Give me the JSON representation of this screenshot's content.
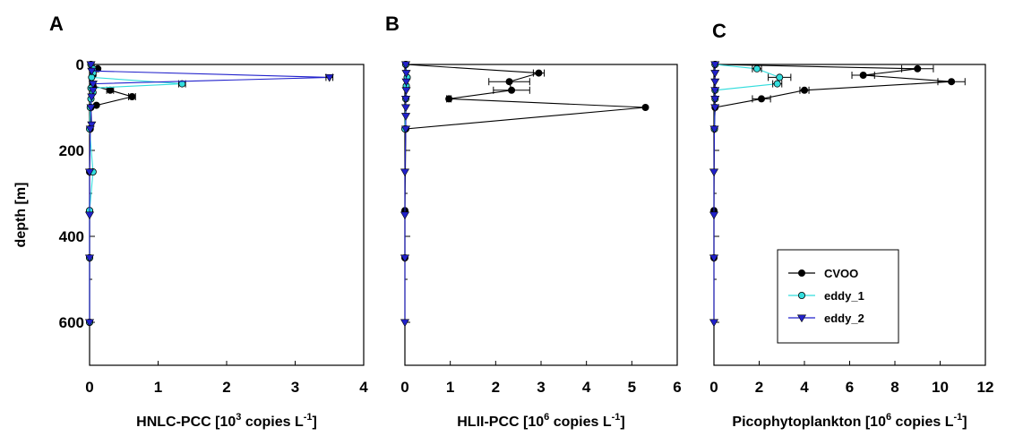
{
  "chart_data": [
    {
      "type": "line",
      "panel": "A",
      "xlabel": "HNLC-PCC [10",
      "xlabel_sup": "3",
      "xlabel_tail": " copies L",
      "xlabel_sup2": "-1",
      "xlabel_end": "]",
      "ylabel": "depth [m]",
      "xlim": [
        0,
        4
      ],
      "ylim": [
        0,
        700
      ],
      "xticks": [
        "0",
        "1",
        "2",
        "3",
        "4"
      ],
      "yticks": [
        "0",
        "200",
        "400",
        "600"
      ],
      "series": [
        {
          "name": "CVOO",
          "color": "#000000",
          "marker": "circle",
          "points": [
            {
              "y": 0,
              "x": 0.02
            },
            {
              "y": 10,
              "x": 0.12
            },
            {
              "y": 25,
              "x": 0.05
            },
            {
              "y": 50,
              "x": 0.05
            },
            {
              "y": 60,
              "x": 0.3,
              "err": 0.05
            },
            {
              "y": 75,
              "x": 0.62,
              "err": 0.05
            },
            {
              "y": 95,
              "x": 0.1
            },
            {
              "y": 100,
              "x": 0.02
            },
            {
              "y": 150,
              "x": 0.01
            },
            {
              "y": 250,
              "x": 0.0
            },
            {
              "y": 340,
              "x": 0.0
            },
            {
              "y": 450,
              "x": 0.0
            },
            {
              "y": 600,
              "x": 0.0
            }
          ]
        },
        {
          "name": "eddy_1",
          "color": "#33dddd",
          "marker": "circle",
          "points": [
            {
              "y": 0,
              "x": 0.02
            },
            {
              "y": 10,
              "x": 0.05
            },
            {
              "y": 20,
              "x": 0.05
            },
            {
              "y": 30,
              "x": 0.03
            },
            {
              "y": 45,
              "x": 1.35,
              "err": 0.05
            },
            {
              "y": 55,
              "x": 0.02
            },
            {
              "y": 65,
              "x": 0.05
            },
            {
              "y": 80,
              "x": 0.02
            },
            {
              "y": 100,
              "x": 0.01
            },
            {
              "y": 150,
              "x": 0.0
            },
            {
              "y": 250,
              "x": 0.05
            },
            {
              "y": 340,
              "x": 0.0
            },
            {
              "y": 450,
              "x": 0.0
            },
            {
              "y": 600,
              "x": 0.0
            }
          ]
        },
        {
          "name": "eddy_2",
          "color": "#2222cc",
          "marker": "triangle-down",
          "points": [
            {
              "y": 0,
              "x": 0.02
            },
            {
              "y": 15,
              "x": 0.03
            },
            {
              "y": 30,
              "x": 3.5,
              "err": 0.05
            },
            {
              "y": 45,
              "x": 0.05
            },
            {
              "y": 60,
              "x": 0.05
            },
            {
              "y": 75,
              "x": 0.03
            },
            {
              "y": 100,
              "x": 0.02
            },
            {
              "y": 140,
              "x": 0.03
            },
            {
              "y": 150,
              "x": 0.01
            },
            {
              "y": 250,
              "x": 0.0
            },
            {
              "y": 350,
              "x": 0.0
            },
            {
              "y": 450,
              "x": 0.0
            },
            {
              "y": 600,
              "x": 0.0
            }
          ]
        }
      ]
    },
    {
      "type": "line",
      "panel": "B",
      "xlabel": "HLII-PCC [10",
      "xlabel_sup": "6",
      "xlabel_tail": " copies L",
      "xlabel_sup2": "-1",
      "xlabel_end": "]",
      "xlim": [
        0,
        6
      ],
      "ylim": [
        0,
        700
      ],
      "xticks": [
        "0",
        "1",
        "2",
        "3",
        "4",
        "5",
        "6"
      ],
      "series": [
        {
          "name": "CVOO",
          "color": "#000000",
          "marker": "circle",
          "points": [
            {
              "y": 0,
              "x": 0.02
            },
            {
              "y": 20,
              "x": 2.95,
              "err": 0.12
            },
            {
              "y": 40,
              "x": 2.3,
              "err": 0.45
            },
            {
              "y": 60,
              "x": 2.35,
              "err": 0.4
            },
            {
              "y": 80,
              "x": 0.97,
              "err": 0.05
            },
            {
              "y": 100,
              "x": 5.3
            },
            {
              "y": 150,
              "x": 0.02
            },
            {
              "y": 340,
              "x": 0.0
            },
            {
              "y": 450,
              "x": 0.0
            }
          ]
        },
        {
          "name": "eddy_1",
          "color": "#33dddd",
          "marker": "circle",
          "points": [
            {
              "y": 0,
              "x": 0.02
            },
            {
              "y": 30,
              "x": 0.05
            },
            {
              "y": 50,
              "x": 0.03
            },
            {
              "y": 80,
              "x": 0.02
            },
            {
              "y": 150,
              "x": 0.0
            }
          ]
        },
        {
          "name": "eddy_2",
          "color": "#2222cc",
          "marker": "triangle-down",
          "points": [
            {
              "y": 0,
              "x": 0.02
            },
            {
              "y": 20,
              "x": 0.03
            },
            {
              "y": 40,
              "x": 0.03
            },
            {
              "y": 60,
              "x": 0.03
            },
            {
              "y": 80,
              "x": 0.02
            },
            {
              "y": 100,
              "x": 0.02
            },
            {
              "y": 120,
              "x": 0.02
            },
            {
              "y": 150,
              "x": 0.02
            },
            {
              "y": 250,
              "x": 0.0
            },
            {
              "y": 350,
              "x": 0.0
            },
            {
              "y": 450,
              "x": 0.0
            },
            {
              "y": 600,
              "x": 0.0
            }
          ]
        }
      ]
    },
    {
      "type": "line",
      "panel": "C",
      "xlabel": "Picophytoplankton [10",
      "xlabel_sup": "6",
      "xlabel_tail": " copies L",
      "xlabel_sup2": "-1",
      "xlabel_end": "]",
      "xlim": [
        0,
        12
      ],
      "ylim": [
        0,
        700
      ],
      "xticks": [
        "0",
        "2",
        "4",
        "6",
        "8",
        "10",
        "12"
      ],
      "series": [
        {
          "name": "CVOO",
          "color": "#000000",
          "marker": "circle",
          "points": [
            {
              "y": 0,
              "x": 0.05
            },
            {
              "y": 10,
              "x": 9.0,
              "err": 0.7
            },
            {
              "y": 25,
              "x": 6.6,
              "err": 0.5
            },
            {
              "y": 40,
              "x": 10.5,
              "err": 0.6
            },
            {
              "y": 60,
              "x": 4.0,
              "err": 0.2
            },
            {
              "y": 80,
              "x": 2.1,
              "err": 0.4
            },
            {
              "y": 100,
              "x": 0.05
            },
            {
              "y": 150,
              "x": 0.02
            },
            {
              "y": 340,
              "x": 0.0
            },
            {
              "y": 450,
              "x": 0.0
            }
          ]
        },
        {
          "name": "eddy_1",
          "color": "#33dddd",
          "marker": "circle",
          "points": [
            {
              "y": 0,
              "x": 0.05
            },
            {
              "y": 10,
              "x": 1.9,
              "err": 0.2
            },
            {
              "y": 30,
              "x": 2.9,
              "err": 0.5
            },
            {
              "y": 45,
              "x": 2.8,
              "err": 0.2
            },
            {
              "y": 60,
              "x": 0.05
            },
            {
              "y": 80,
              "x": 0.05
            },
            {
              "y": 150,
              "x": 0.02
            }
          ]
        },
        {
          "name": "eddy_2",
          "color": "#2222cc",
          "marker": "triangle-down",
          "points": [
            {
              "y": 0,
              "x": 0.05
            },
            {
              "y": 20,
              "x": 0.05
            },
            {
              "y": 40,
              "x": 0.05
            },
            {
              "y": 60,
              "x": 0.05
            },
            {
              "y": 80,
              "x": 0.05
            },
            {
              "y": 100,
              "x": 0.05
            },
            {
              "y": 150,
              "x": 0.02
            },
            {
              "y": 250,
              "x": 0.0
            },
            {
              "y": 350,
              "x": 0.0
            },
            {
              "y": 450,
              "x": 0.0
            },
            {
              "y": 600,
              "x": 0.0
            }
          ]
        }
      ],
      "legend": [
        "CVOO",
        "eddy_1",
        "eddy_2"
      ],
      "legend_position": "lower-right"
    }
  ]
}
